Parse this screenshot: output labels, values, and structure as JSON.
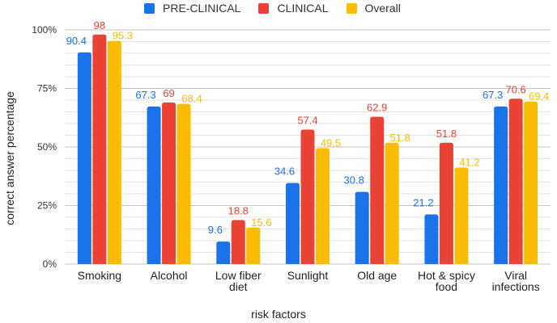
{
  "chart_data": {
    "type": "bar",
    "title": "",
    "xlabel": "risk factors",
    "ylabel": "correct answer percentage",
    "ylim": [
      0,
      100
    ],
    "yticks": [
      0,
      25,
      50,
      75,
      100
    ],
    "ytick_labels": [
      "0%",
      "25%",
      "50%",
      "75%",
      "100%"
    ],
    "grid": true,
    "legend_position": "top",
    "categories": [
      [
        "Smoking"
      ],
      [
        "Alcohol"
      ],
      [
        "Low fiber",
        "diet"
      ],
      [
        "Sunlight"
      ],
      [
        "Old age"
      ],
      [
        "Hot & spicy",
        "food"
      ],
      [
        "Viral",
        "infections"
      ]
    ],
    "series": [
      {
        "name": "PRE-CLINICAL",
        "color": "#1a73e8",
        "values": [
          90.4,
          67.3,
          9.6,
          34.6,
          30.8,
          21.2,
          67.3
        ],
        "labels": [
          "90.4",
          "67.3",
          "9.6",
          "34.6",
          "30.8",
          "21.2",
          "67.3"
        ]
      },
      {
        "name": "CLINICAL",
        "color": "#ea4335",
        "values": [
          98,
          69,
          18.8,
          57.4,
          62.9,
          51.8,
          70.6
        ],
        "labels": [
          "98",
          "69",
          "18.8",
          "57.4",
          "62.9",
          "51.8",
          "70.6"
        ]
      },
      {
        "name": "Overall",
        "color": "#fbbc04",
        "values": [
          95.3,
          68.4,
          15.6,
          49.5,
          51.8,
          41.2,
          69.4
        ],
        "labels": [
          "95.3",
          "68.4",
          "15.6",
          "49.5",
          "51.8",
          "41.2",
          "69.4"
        ]
      }
    ]
  }
}
